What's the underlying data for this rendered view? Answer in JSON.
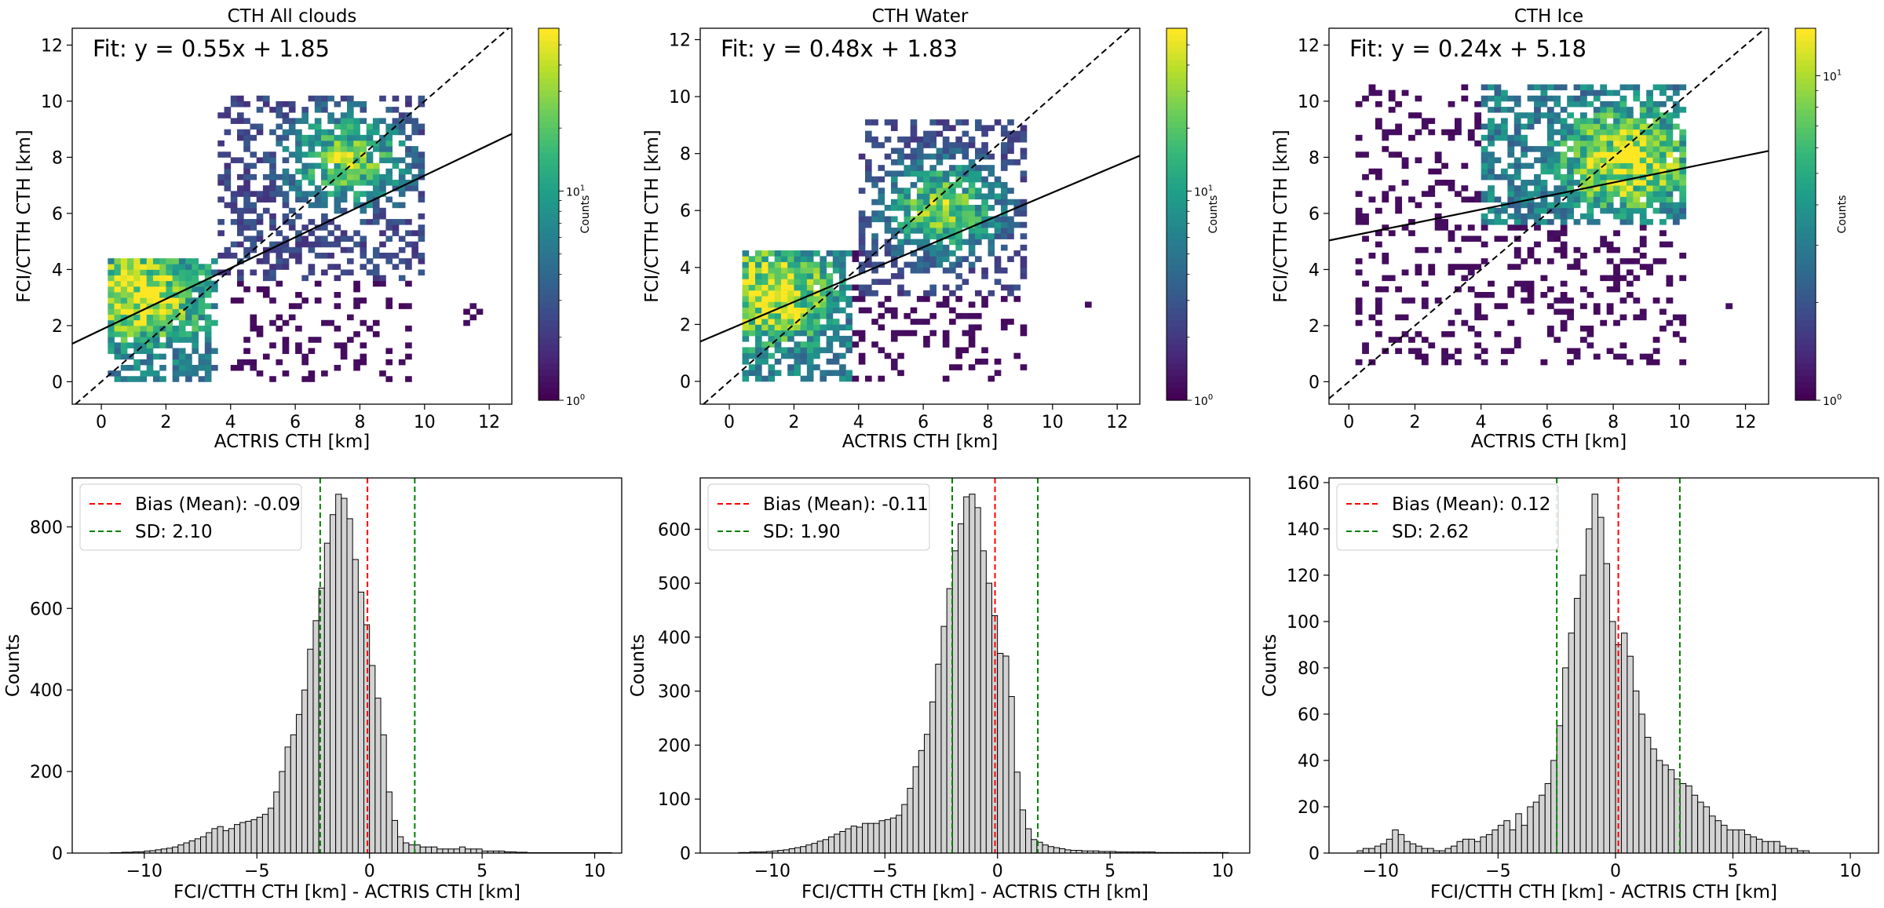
{
  "chart_data": [
    {
      "type": "heatmap",
      "title": "CTH All clouds",
      "xlabel": "ACTRIS CTH [km]",
      "ylabel": "FCI/CTTH CTH [km]",
      "xlim": [
        -0.9,
        12.7
      ],
      "ylim": [
        -0.8,
        12.6
      ],
      "xticks": [
        0,
        2,
        4,
        6,
        8,
        10,
        12
      ],
      "yticks": [
        0,
        2,
        4,
        6,
        8,
        10,
        12
      ],
      "fit_text": "Fit: y = 0.55x + 1.85",
      "fit": {
        "slope": 0.55,
        "intercept": 1.85
      },
      "identity_line": true,
      "colorbar": {
        "label": "Counts",
        "scale": "log",
        "min": 1,
        "max": 60,
        "ticks": [
          "10^0",
          "10^1"
        ]
      },
      "clusters": [
        {
          "x": [
            0.1,
            3.5
          ],
          "y": [
            0,
            4.3
          ],
          "density": "high",
          "peak": [
            1.2,
            3.0
          ]
        },
        {
          "x": [
            3.5,
            9.8
          ],
          "y": [
            3.5,
            10
          ],
          "density": "medium",
          "peak": [
            7.5,
            7.8
          ]
        },
        {
          "x": [
            4,
            9.5
          ],
          "y": [
            0,
            5
          ],
          "density": "low"
        },
        {
          "x": [
            11,
            11.7
          ],
          "y": [
            1.8,
            2.8
          ],
          "density": "low"
        }
      ]
    },
    {
      "type": "heatmap",
      "title": "CTH Water",
      "xlabel": "ACTRIS CTH [km]",
      "ylabel": "FCI/CTTH CTH [km]",
      "xlim": [
        -0.9,
        12.7
      ],
      "ylim": [
        -0.8,
        12.4
      ],
      "xticks": [
        0,
        2,
        4,
        6,
        8,
        10,
        12
      ],
      "yticks": [
        0,
        2,
        4,
        6,
        8,
        10,
        12
      ],
      "fit_text": "Fit: y = 0.48x + 1.83",
      "fit": {
        "slope": 0.48,
        "intercept": 1.83
      },
      "identity_line": true,
      "colorbar": {
        "label": "Counts",
        "scale": "log",
        "min": 1,
        "max": 60,
        "ticks": [
          "10^0",
          "10^1"
        ]
      },
      "clusters": [
        {
          "x": [
            0.3,
            3.8
          ],
          "y": [
            0,
            4.5
          ],
          "density": "high",
          "peak": [
            1.2,
            3.0
          ]
        },
        {
          "x": [
            4,
            9
          ],
          "y": [
            3,
            9
          ],
          "density": "medium",
          "peak": [
            6.5,
            6.0
          ]
        },
        {
          "x": [
            3.5,
            9
          ],
          "y": [
            0,
            4.5
          ],
          "density": "low"
        },
        {
          "x": [
            10.8,
            11.5
          ],
          "y": [
            2,
            2.8
          ],
          "density": "low"
        }
      ]
    },
    {
      "type": "heatmap",
      "title": "CTH Ice",
      "xlabel": "ACTRIS CTH [km]",
      "ylabel": "FCI/CTTH CTH [km]",
      "xlim": [
        -0.6,
        12.7
      ],
      "ylim": [
        -0.8,
        12.6
      ],
      "xticks": [
        0,
        2,
        4,
        6,
        8,
        10,
        12
      ],
      "yticks": [
        0,
        2,
        4,
        6,
        8,
        10,
        12
      ],
      "fit_text": "Fit: y = 0.24x + 5.18",
      "fit": {
        "slope": 0.24,
        "intercept": 5.18
      },
      "identity_line": true,
      "colorbar": {
        "label": "Counts",
        "scale": "log",
        "min": 1,
        "max": 14,
        "ticks": [
          "10^0",
          "10^1"
        ]
      },
      "clusters": [
        {
          "x": [
            4,
            10
          ],
          "y": [
            5.5,
            10.5
          ],
          "density": "high",
          "peak": [
            8.3,
            7.8
          ]
        },
        {
          "x": [
            0.2,
            10
          ],
          "y": [
            0.5,
            10.5
          ],
          "density": "low"
        },
        {
          "x": [
            11.3,
            11.8
          ],
          "y": [
            1.8,
            2.6
          ],
          "density": "low"
        }
      ]
    },
    {
      "type": "bar",
      "subtype": "histogram",
      "xlabel": "FCI/CTTH CTH [km] - ACTRIS CTH [km]",
      "ylabel": "Counts",
      "xlim": [
        -13.2,
        11.2
      ],
      "ylim": [
        0,
        920
      ],
      "xticks": [
        -10,
        -5,
        0,
        5,
        10
      ],
      "yticks": [
        0,
        200,
        400,
        600,
        800
      ],
      "bin_start": -11.5,
      "bin_width": 0.25,
      "counts": [
        1,
        1,
        2,
        2,
        3,
        3,
        5,
        6,
        8,
        10,
        12,
        15,
        20,
        25,
        30,
        35,
        40,
        50,
        60,
        65,
        55,
        60,
        70,
        75,
        78,
        82,
        88,
        95,
        110,
        150,
        200,
        260,
        290,
        340,
        400,
        500,
        570,
        650,
        760,
        830,
        880,
        870,
        820,
        720,
        640,
        560,
        460,
        380,
        290,
        150,
        80,
        40,
        25,
        20,
        20,
        15,
        15,
        15,
        10,
        10,
        10,
        10,
        15,
        10,
        10,
        10,
        5,
        5,
        5,
        5,
        3,
        3,
        2,
        2,
        1,
        1,
        1,
        1,
        1,
        1,
        1,
        1,
        1,
        1,
        1,
        1,
        1,
        1,
        1
      ],
      "mean_line": {
        "x": -0.09,
        "label": "Bias (Mean): -0.09"
      },
      "sd_lines": {
        "x": [
          -2.19,
          2.01
        ],
        "label": "SD: 2.10"
      }
    },
    {
      "type": "bar",
      "subtype": "histogram",
      "xlabel": "FCI/CTTH CTH [km] - ACTRIS CTH [km]",
      "ylabel": "Counts",
      "xlim": [
        -13.2,
        11.2
      ],
      "ylim": [
        0,
        695
      ],
      "xticks": [
        -10,
        -5,
        0,
        5,
        10
      ],
      "yticks": [
        0,
        100,
        200,
        300,
        400,
        500,
        600
      ],
      "bin_start": -11.5,
      "bin_width": 0.25,
      "counts": [
        1,
        1,
        2,
        2,
        2,
        3,
        4,
        5,
        6,
        8,
        10,
        12,
        15,
        18,
        22,
        25,
        30,
        35,
        40,
        45,
        50,
        48,
        55,
        55,
        55,
        60,
        62,
        65,
        70,
        90,
        120,
        160,
        190,
        220,
        280,
        350,
        420,
        490,
        560,
        610,
        660,
        665,
        640,
        560,
        500,
        440,
        370,
        365,
        290,
        150,
        80,
        45,
        25,
        20,
        15,
        12,
        10,
        8,
        6,
        5,
        5,
        4,
        4,
        4,
        3,
        3,
        3,
        2,
        2,
        2,
        2,
        2,
        2,
        2,
        1,
        1,
        1,
        1,
        1,
        1,
        1,
        1,
        1,
        1,
        1,
        1,
        1
      ],
      "mean_line": {
        "x": -0.11,
        "label": "Bias (Mean): -0.11"
      },
      "sd_lines": {
        "x": [
          -2.01,
          1.79
        ],
        "label": "SD: 1.90"
      }
    },
    {
      "type": "bar",
      "subtype": "histogram",
      "xlabel": "FCI/CTTH CTH [km] - ACTRIS CTH [km]",
      "ylabel": "Counts",
      "xlim": [
        -12.2,
        11.2
      ],
      "ylim": [
        0,
        162
      ],
      "xticks": [
        -10,
        -5,
        0,
        5,
        10
      ],
      "yticks": [
        0,
        20,
        40,
        60,
        80,
        100,
        120,
        140,
        160
      ],
      "bin_start": -11.0,
      "bin_width": 0.25,
      "counts": [
        1,
        2,
        2,
        3,
        4,
        6,
        10,
        8,
        5,
        4,
        3,
        2,
        2,
        1,
        1,
        2,
        3,
        5,
        6,
        6,
        5,
        7,
        8,
        10,
        12,
        14,
        10,
        17,
        12,
        20,
        22,
        25,
        30,
        40,
        55,
        80,
        95,
        110,
        120,
        140,
        155,
        145,
        125,
        100,
        90,
        95,
        85,
        70,
        60,
        50,
        45,
        40,
        38,
        36,
        32,
        30,
        29,
        25,
        22,
        20,
        16,
        14,
        12,
        10,
        10,
        10,
        8,
        7,
        6,
        5,
        5,
        5,
        3,
        2,
        2,
        1,
        1
      ],
      "mean_line": {
        "x": 0.12,
        "label": "Bias (Mean): 0.12"
      },
      "sd_lines": {
        "x": [
          -2.5,
          2.74
        ],
        "label": "SD: 2.62"
      }
    }
  ]
}
